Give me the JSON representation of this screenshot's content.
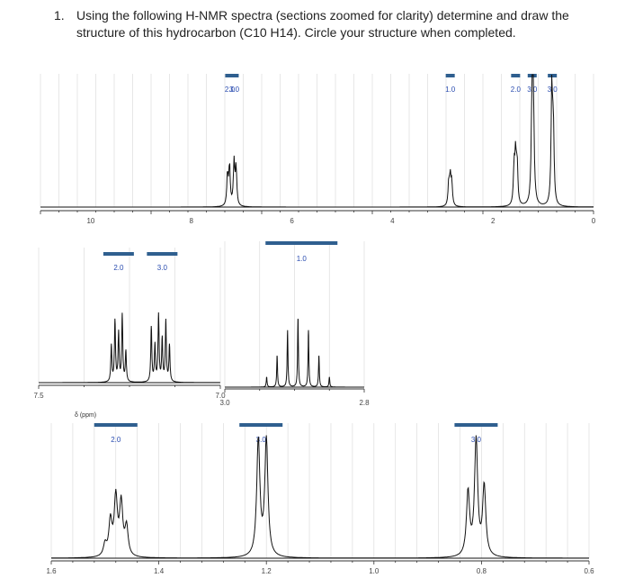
{
  "question": {
    "number": "1.",
    "text": "Using the following H-NMR spectra (sections zoomed for clarity) determine and draw the structure of this hydrocarbon (C10 H14). Circle your structure when completed."
  },
  "colors": {
    "integration_bar": "#2f5f8f",
    "integration_text": "#2a4cb0",
    "trace": "#111111",
    "grid": "#dddddd"
  },
  "chart_data": [
    {
      "type": "line",
      "panel": "full spectrum",
      "x_unit": "ppm",
      "xlim": [
        11,
        0
      ],
      "xticks": [
        10,
        8,
        6,
        4,
        2,
        0
      ],
      "integrations": [
        {
          "label": "2.0",
          "x_center": 7.2
        },
        {
          "label": "3.0",
          "x_center": 7.2
        },
        {
          "label": "1.0",
          "x_center": 2.85
        },
        {
          "label": "2.0",
          "x_center": 1.55
        },
        {
          "label": "3.0",
          "x_center": 1.22
        },
        {
          "label": "3.0",
          "x_center": 0.82
        }
      ],
      "peaks": [
        {
          "x": 7.28,
          "height": 0.25
        },
        {
          "x": 7.24,
          "height": 0.32
        },
        {
          "x": 7.15,
          "height": 0.35
        },
        {
          "x": 7.11,
          "height": 0.3
        },
        {
          "x": 2.88,
          "height": 0.18
        },
        {
          "x": 2.85,
          "height": 0.22
        },
        {
          "x": 2.82,
          "height": 0.18
        },
        {
          "x": 1.58,
          "height": 0.3
        },
        {
          "x": 1.55,
          "height": 0.38
        },
        {
          "x": 1.52,
          "height": 0.32
        },
        {
          "x": 1.22,
          "height": 1.0
        },
        {
          "x": 1.2,
          "height": 0.95
        },
        {
          "x": 0.83,
          "height": 0.95
        },
        {
          "x": 0.8,
          "height": 0.6
        }
      ]
    },
    {
      "type": "line",
      "panel": "zoom aromatic",
      "x_unit": "ppm",
      "xlim": [
        7.5,
        7.0
      ],
      "x_label": "δ (ppm)",
      "xticks": [
        7.5,
        7.0
      ],
      "integrations": [
        {
          "label": "2.0",
          "x_center": 7.28
        },
        {
          "label": "3.0",
          "x_center": 7.16
        }
      ],
      "peaks": [
        {
          "x": 7.3,
          "height": 0.3
        },
        {
          "x": 7.29,
          "height": 0.5
        },
        {
          "x": 7.28,
          "height": 0.4
        },
        {
          "x": 7.27,
          "height": 0.55
        },
        {
          "x": 7.26,
          "height": 0.25
        },
        {
          "x": 7.19,
          "height": 0.45
        },
        {
          "x": 7.18,
          "height": 0.3
        },
        {
          "x": 7.17,
          "height": 0.55
        },
        {
          "x": 7.16,
          "height": 0.35
        },
        {
          "x": 7.15,
          "height": 0.5
        },
        {
          "x": 7.14,
          "height": 0.3
        }
      ]
    },
    {
      "type": "line",
      "panel": "zoom methine",
      "x_unit": "ppm",
      "xlim": [
        3.0,
        2.8
      ],
      "xticks": [
        3.0,
        2.8
      ],
      "integrations": [
        {
          "label": "1.0",
          "x_center": 2.89
        }
      ],
      "peaks": [
        {
          "x": 2.94,
          "height": 0.08
        },
        {
          "x": 2.925,
          "height": 0.25
        },
        {
          "x": 2.91,
          "height": 0.45
        },
        {
          "x": 2.895,
          "height": 0.55
        },
        {
          "x": 2.88,
          "height": 0.45
        },
        {
          "x": 2.865,
          "height": 0.25
        },
        {
          "x": 2.85,
          "height": 0.08
        }
      ]
    },
    {
      "type": "line",
      "panel": "zoom aliphatic",
      "x_unit": "ppm",
      "xlim": [
        1.6,
        0.6
      ],
      "xticks": [
        1.6,
        1.4,
        1.2,
        1.0,
        0.8,
        0.6
      ],
      "integrations": [
        {
          "label": "2.0",
          "x_center": 1.48
        },
        {
          "label": "3.0",
          "x_center": 1.21
        },
        {
          "label": "3.0",
          "x_center": 0.81
        }
      ],
      "peaks": [
        {
          "x": 1.5,
          "height": 0.1
        },
        {
          "x": 1.49,
          "height": 0.3
        },
        {
          "x": 1.48,
          "height": 0.5
        },
        {
          "x": 1.47,
          "height": 0.45
        },
        {
          "x": 1.46,
          "height": 0.25
        },
        {
          "x": 1.215,
          "height": 1.0
        },
        {
          "x": 1.2,
          "height": 1.0
        },
        {
          "x": 0.825,
          "height": 0.55
        },
        {
          "x": 0.81,
          "height": 1.0
        },
        {
          "x": 0.795,
          "height": 0.6
        }
      ]
    }
  ]
}
